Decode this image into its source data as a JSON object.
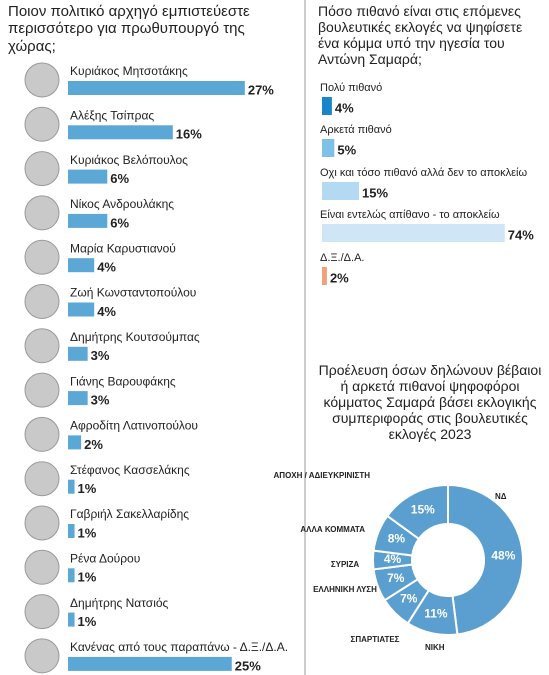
{
  "chart_data": [
    {
      "type": "bar",
      "title": "Ποιον πολιτικό αρχηγό εμπιστεύεστε περισσότερο για πρωθυπουργό της χώρας;",
      "categories": [
        "Κυριάκος Μητσοτάκης",
        "Αλέξης Τσίπρας",
        "Κυριάκος Βελόπουλος",
        "Νίκος Ανδρουλάκης",
        "Μαρία Καρυστιανού",
        "Ζωή Κωνσταντοπούλου",
        "Δημήτρης Κουτσούμπας",
        "Γιάνης Βαρουφάκης",
        "Αφροδίτη Λατινοπούλου",
        "Στέφανος Κασσελάκης",
        "Γαβριήλ Σακελλαρίδης",
        "Ρένα Δούρου",
        "Δημήτρης Νατσιός",
        "Κανένας από τους παραπάνω - Δ.Ξ./Δ.Α."
      ],
      "values": [
        27,
        16,
        6,
        6,
        4,
        4,
        3,
        3,
        2,
        1,
        1,
        1,
        1,
        25
      ],
      "value_labels": [
        "27%",
        "16%",
        "6%",
        "6%",
        "4%",
        "4%",
        "3%",
        "3%",
        "2%",
        "1%",
        "1%",
        "1%",
        "1%",
        "25%"
      ],
      "color": "#5ba7d5"
    },
    {
      "type": "bar",
      "title": "Πόσο πιθανό είναι στις επόμενες βουλευτικές εκλογές να ψηφίσετε ένα κόμμα υπό την ηγεσία του Αντώνη Σαμαρά;",
      "categories": [
        "Πολύ πιθανό",
        "Αρκετά πιθανό",
        "Οχι και τόσο πιθανό αλλά δεν το αποκλείω",
        "Είναι εντελώς απίθανο - το αποκλείω",
        "Δ.Ξ./Δ.Α."
      ],
      "values": [
        4,
        5,
        15,
        74,
        2
      ],
      "value_labels": [
        "4%",
        "5%",
        "15%",
        "74%",
        "2%"
      ],
      "colors": [
        "#1a85c9",
        "#7fc0e8",
        "#b3daf2",
        "#cfe6f6",
        "#f0a27a"
      ]
    },
    {
      "type": "pie",
      "title": "Προέλευση όσων δηλώνουν βέβαιοι ή αρκετά πιθανοί ψηφοφόροι κόμματος Σαμαρά βάσει εκλογικής συμπεριφοράς στις βουλευτικές εκλογές 2023",
      "categories": [
        "ΝΔ",
        "ΝΙΚΗ",
        "ΣΠΑΡΤΙΑΤΕΣ",
        "ΕΛΛΗΝΙΚΗ ΛΥΣΗ",
        "ΣΥΡΙΖΑ",
        "ΑΛΛΑ ΚΟΜΜΑΤΑ",
        "ΑΠΟΧΗ / ΑΔΙΕΥΚΡΙΝΙΣΤΗ"
      ],
      "values": [
        48,
        11,
        7,
        7,
        4,
        8,
        15
      ],
      "value_labels": [
        "48%",
        "11%",
        "7%",
        "7%",
        "4%",
        "8%",
        "15%"
      ],
      "color": "#5b9fd0"
    }
  ]
}
